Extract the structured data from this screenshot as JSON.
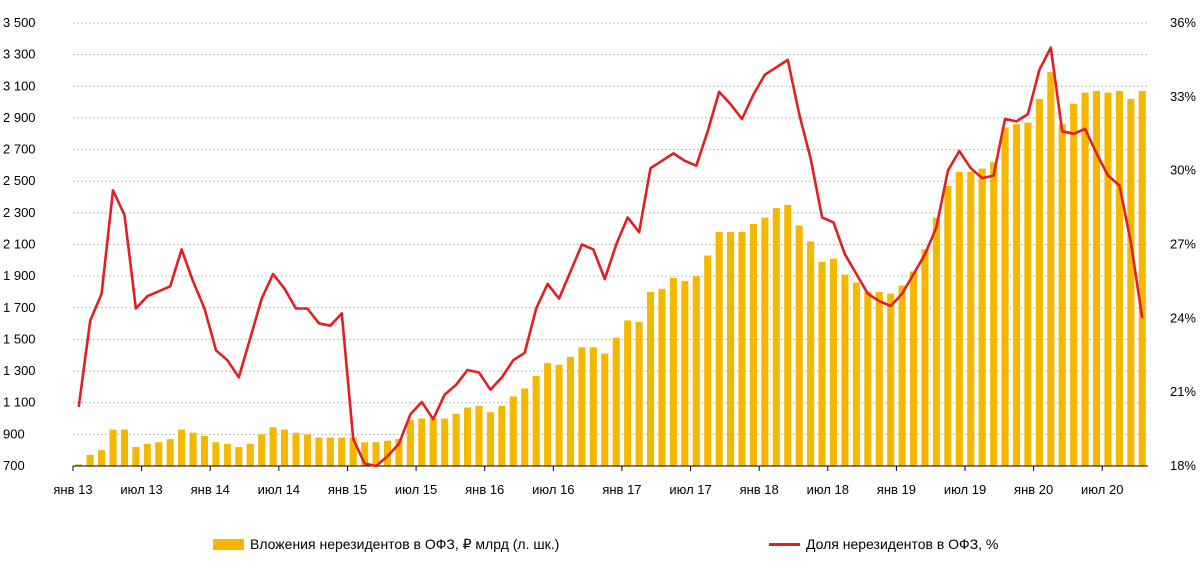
{
  "chart_data": {
    "type": "bar+line",
    "x_ticks": [
      "янв 13",
      "июл 13",
      "янв 14",
      "июл 14",
      "янв 15",
      "июл 15",
      "янв 16",
      "июл 16",
      "янв 17",
      "июл 17",
      "янв 18",
      "июл 18",
      "янв 19",
      "июл 19",
      "янв 20",
      "июл 20"
    ],
    "y_left": {
      "lim": [
        700,
        3500
      ],
      "ticks": [
        "700",
        "900",
        "1 100",
        "1 300",
        "1 500",
        "1 700",
        "1 900",
        "2 100",
        "2 300",
        "2 500",
        "2 700",
        "2 900",
        "3 100",
        "3 300",
        "3 500"
      ],
      "tick_values": [
        700,
        900,
        1100,
        1300,
        1500,
        1700,
        1900,
        2100,
        2300,
        2500,
        2700,
        2900,
        3100,
        3300,
        3500
      ]
    },
    "y_right": {
      "lim": [
        18,
        36
      ],
      "ticks": [
        "18%",
        "21%",
        "24%",
        "27%",
        "30%",
        "33%",
        "36%"
      ],
      "tick_values": [
        18,
        21,
        24,
        27,
        30,
        33,
        36
      ]
    },
    "grid": "horizontal",
    "legend_placement": "bottom",
    "series": [
      {
        "name": "Вложения нерезидентов в ОФЗ, ₽ млрд (л. шк.)",
        "type": "bar",
        "axis": "left",
        "color": "#F5B800",
        "start": "янв 13",
        "values": [
          710,
          770,
          800,
          930,
          930,
          820,
          840,
          850,
          870,
          930,
          910,
          890,
          850,
          840,
          820,
          840,
          900,
          945,
          930,
          910,
          900,
          880,
          880,
          880,
          880,
          850,
          850,
          860,
          870,
          990,
          1000,
          1000,
          1000,
          1030,
          1070,
          1080,
          1040,
          1080,
          1140,
          1190,
          1270,
          1350,
          1340,
          1390,
          1450,
          1450,
          1410,
          1510,
          1620,
          1610,
          1800,
          1820,
          1890,
          1870,
          1900,
          2030,
          2180,
          2180,
          2180,
          2230,
          2270,
          2330,
          2350,
          2220,
          2120,
          1990,
          2010,
          1910,
          1860,
          1800,
          1800,
          1790,
          1840,
          1930,
          2070,
          2270,
          2470,
          2560,
          2560,
          2580,
          2620,
          2840,
          2860,
          2870,
          3020,
          3190,
          2860,
          2990,
          3060,
          3070,
          3060,
          3070,
          3020,
          3070
        ]
      },
      {
        "name": "Доля нерезидентов в ОФЗ, %",
        "type": "line",
        "axis": "right",
        "color": "#E31E24",
        "start": "янв 13",
        "values": [
          20.4,
          23.9,
          25.0,
          29.2,
          28.2,
          24.4,
          24.9,
          25.1,
          25.3,
          26.8,
          25.5,
          24.4,
          22.7,
          22.3,
          21.6,
          23.2,
          24.8,
          25.8,
          25.2,
          24.4,
          24.4,
          23.8,
          23.7,
          24.2,
          19.1,
          18.1,
          18.0,
          18.4,
          18.9,
          20.1,
          20.6,
          19.9,
          20.9,
          21.3,
          21.9,
          21.8,
          21.1,
          21.6,
          22.3,
          22.6,
          24.4,
          25.4,
          24.8,
          25.9,
          27.0,
          26.8,
          25.6,
          27.0,
          28.1,
          27.5,
          30.1,
          30.4,
          30.7,
          30.4,
          30.2,
          31.6,
          33.2,
          32.7,
          32.1,
          33.1,
          33.9,
          34.2,
          34.5,
          32.3,
          30.5,
          28.1,
          27.9,
          26.6,
          25.8,
          25.0,
          24.7,
          24.5,
          25.0,
          25.8,
          26.6,
          27.7,
          30.0,
          30.8,
          30.1,
          29.7,
          29.8,
          32.1,
          32.0,
          32.3,
          34.1,
          35.0,
          31.6,
          31.5,
          31.7,
          30.7,
          29.8,
          29.4,
          27.1,
          24.0
        ]
      }
    ]
  }
}
